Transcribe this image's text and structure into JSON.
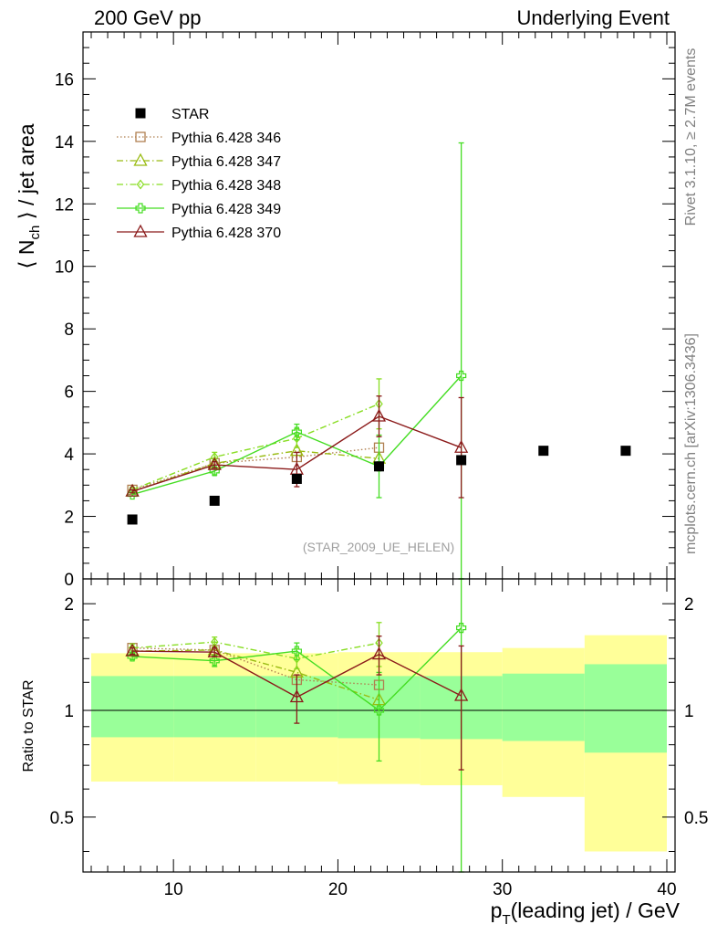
{
  "header": {
    "left": "200 GeV pp",
    "right": "Underlying Event"
  },
  "side_labels": {
    "rivet": "Rivet 3.1.10, ≥ 2.7M events",
    "mcplots": "mcplots.cern.ch [arXiv:1306.3436]"
  },
  "watermark": "(STAR_2009_UE_HELEN)",
  "chart_data": [
    {
      "type": "scatter",
      "panel": "main",
      "ylabel": {
        "open": "⟨ N",
        "sub": "ch",
        "close": " ⟩ / jet area"
      },
      "xlim": [
        4.5,
        40.5
      ],
      "ylim": [
        0,
        17.5
      ],
      "yticks": [
        0,
        2,
        4,
        6,
        8,
        10,
        12,
        14,
        16
      ],
      "legend": {
        "placement": "top-left"
      },
      "series": [
        {
          "name": "STAR",
          "color": "#000000",
          "marker": "filled-square",
          "line": "none",
          "points": [
            {
              "x": 7.5,
              "y": 1.9
            },
            {
              "x": 12.5,
              "y": 2.5
            },
            {
              "x": 17.5,
              "y": 3.2
            },
            {
              "x": 22.5,
              "y": 3.6
            },
            {
              "x": 27.5,
              "y": 3.8
            },
            {
              "x": 32.5,
              "y": 4.1
            },
            {
              "x": 37.5,
              "y": 4.1
            }
          ]
        },
        {
          "name": "Pythia 6.428 346",
          "color": "#b08050",
          "marker": "open-square",
          "line": "dotted",
          "points": [
            {
              "x": 7.5,
              "y": 2.85
            },
            {
              "x": 12.5,
              "y": 3.7
            },
            {
              "x": 17.5,
              "y": 3.9
            },
            {
              "x": 22.5,
              "y": 4.2
            }
          ]
        },
        {
          "name": "Pythia 6.428 347",
          "color": "#99bb11",
          "marker": "open-triangle",
          "line": "dashdot",
          "points": [
            {
              "x": 7.5,
              "y": 2.8
            },
            {
              "x": 12.5,
              "y": 3.7
            },
            {
              "x": 17.5,
              "y": 4.1
            },
            {
              "x": 22.5,
              "y": 3.85
            }
          ]
        },
        {
          "name": "Pythia 6.428 348",
          "color": "#88dd22",
          "marker": "open-diamond",
          "line": "dashdot",
          "points": [
            {
              "x": 7.5,
              "y": 2.85,
              "err": 0.08
            },
            {
              "x": 12.5,
              "y": 3.9,
              "err": 0.15
            },
            {
              "x": 17.5,
              "y": 4.5,
              "err": 0.3
            },
            {
              "x": 22.5,
              "y": 5.6,
              "err": 0.8
            }
          ]
        },
        {
          "name": "Pythia 6.428 349",
          "color": "#44dd22",
          "marker": "open-cross",
          "line": "solid",
          "points": [
            {
              "x": 7.5,
              "y": 2.7,
              "err": 0.05
            },
            {
              "x": 12.5,
              "y": 3.45,
              "err": 0.12
            },
            {
              "x": 17.5,
              "y": 4.7,
              "err": 0.25
            },
            {
              "x": 22.5,
              "y": 3.6,
              "err": 1.0
            },
            {
              "x": 27.5,
              "y": 6.5,
              "err": 7.45
            }
          ]
        },
        {
          "name": "Pythia 6.428 370",
          "color": "#8b1a1a",
          "marker": "open-triangle",
          "line": "solid",
          "points": [
            {
              "x": 7.5,
              "y": 2.8,
              "err": 0.05
            },
            {
              "x": 12.5,
              "y": 3.65,
              "err": 0.1
            },
            {
              "x": 17.5,
              "y": 3.5,
              "err": 0.55
            },
            {
              "x": 22.5,
              "y": 5.2,
              "err": 0.65
            },
            {
              "x": 27.5,
              "y": 4.2,
              "err": 1.6
            }
          ]
        }
      ]
    },
    {
      "type": "scatter",
      "panel": "ratio",
      "ylabel": "Ratio to STAR",
      "xlabel": {
        "p": "p",
        "sub": "T",
        "rest": "(leading jet) / GeV"
      },
      "xlim": [
        4.5,
        40.5
      ],
      "ylim": [
        0.35,
        2.35
      ],
      "yscale": "log",
      "yticks": [
        0.5,
        1,
        2
      ],
      "xticks": [
        10,
        20,
        30,
        40
      ],
      "reference_line": 1,
      "bands": [
        {
          "x0": 5,
          "x1": 10,
          "yellow": [
            0.63,
            1.45
          ],
          "green": [
            0.84,
            1.25
          ]
        },
        {
          "x0": 10,
          "x1": 15,
          "yellow": [
            0.63,
            1.45
          ],
          "green": [
            0.84,
            1.25
          ]
        },
        {
          "x0": 15,
          "x1": 20,
          "yellow": [
            0.63,
            1.45
          ],
          "green": [
            0.84,
            1.25
          ]
        },
        {
          "x0": 20,
          "x1": 25,
          "yellow": [
            0.62,
            1.46
          ],
          "green": [
            0.835,
            1.25
          ]
        },
        {
          "x0": 25,
          "x1": 30,
          "yellow": [
            0.615,
            1.46
          ],
          "green": [
            0.83,
            1.25
          ]
        },
        {
          "x0": 30,
          "x1": 35,
          "yellow": [
            0.57,
            1.5
          ],
          "green": [
            0.82,
            1.27
          ]
        },
        {
          "x0": 35,
          "x1": 40,
          "yellow": [
            0.4,
            1.63
          ],
          "green": [
            0.76,
            1.35
          ]
        }
      ],
      "series": [
        {
          "name": "Pythia 6.428 346",
          "points": [
            {
              "x": 7.5,
              "y": 1.5
            },
            {
              "x": 12.5,
              "y": 1.48
            },
            {
              "x": 17.5,
              "y": 1.22
            },
            {
              "x": 22.5,
              "y": 1.18
            }
          ]
        },
        {
          "name": "Pythia 6.428 347",
          "points": [
            {
              "x": 7.5,
              "y": 1.47
            },
            {
              "x": 12.5,
              "y": 1.48
            },
            {
              "x": 17.5,
              "y": 1.28
            },
            {
              "x": 22.5,
              "y": 1.07
            }
          ]
        },
        {
          "name": "Pythia 6.428 348",
          "points": [
            {
              "x": 7.5,
              "y": 1.5,
              "err": 0.04
            },
            {
              "x": 12.5,
              "y": 1.56,
              "err": 0.05
            },
            {
              "x": 17.5,
              "y": 1.4,
              "err": 0.09
            },
            {
              "x": 22.5,
              "y": 1.55,
              "err": 0.22
            }
          ]
        },
        {
          "name": "Pythia 6.428 349",
          "points": [
            {
              "x": 7.5,
              "y": 1.42,
              "err": 0.03
            },
            {
              "x": 12.5,
              "y": 1.38,
              "err": 0.05
            },
            {
              "x": 17.5,
              "y": 1.47,
              "err": 0.08
            },
            {
              "x": 22.5,
              "y": 1.0,
              "err": 0.28
            },
            {
              "x": 27.5,
              "y": 1.71,
              "err": 1.96
            }
          ]
        },
        {
          "name": "Pythia 6.428 370",
          "points": [
            {
              "x": 7.5,
              "y": 1.47,
              "err": 0.03
            },
            {
              "x": 12.5,
              "y": 1.46,
              "err": 0.04
            },
            {
              "x": 17.5,
              "y": 1.09,
              "err": 0.17
            },
            {
              "x": 22.5,
              "y": 1.44,
              "err": 0.18
            },
            {
              "x": 27.5,
              "y": 1.1,
              "err": 0.42
            }
          ]
        }
      ]
    }
  ]
}
